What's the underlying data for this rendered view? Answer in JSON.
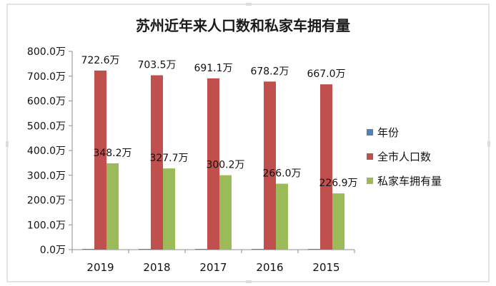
{
  "chart_data": {
    "type": "bar",
    "title": "苏州近年来人口数和私家车拥有量",
    "categories": [
      "2019",
      "2018",
      "2017",
      "2016",
      "2015"
    ],
    "series": [
      {
        "name": "年份",
        "color": "#4f81bd",
        "values": [
          2019,
          2018,
          2017,
          2016,
          2015
        ],
        "plotted_values": [
          2.019,
          2.018,
          2.017,
          2.016,
          2.015
        ],
        "show_labels": false
      },
      {
        "name": "全市人口数",
        "color": "#c0504d",
        "values": [
          722.6,
          703.5,
          691.1,
          678.2,
          667.0
        ],
        "labels": [
          "722.6万",
          "703.5万",
          "691.1万",
          "678.2万",
          "667.0万"
        ],
        "show_labels": true
      },
      {
        "name": "私家车拥有量",
        "color": "#9bbb59",
        "values": [
          348.2,
          327.7,
          300.2,
          266.0,
          226.9
        ],
        "labels": [
          "348.2万",
          "327.7万",
          "300.2万",
          "266.0万",
          "226.9万"
        ],
        "show_labels": true
      }
    ],
    "ylim": [
      0,
      800
    ],
    "yticks": [
      "0.0万",
      "100.0万",
      "200.0万",
      "300.0万",
      "400.0万",
      "500.0万",
      "600.0万",
      "700.0万",
      "800.0万"
    ],
    "xlabel": "",
    "ylabel": "",
    "grid": false,
    "legend_position": "right"
  }
}
